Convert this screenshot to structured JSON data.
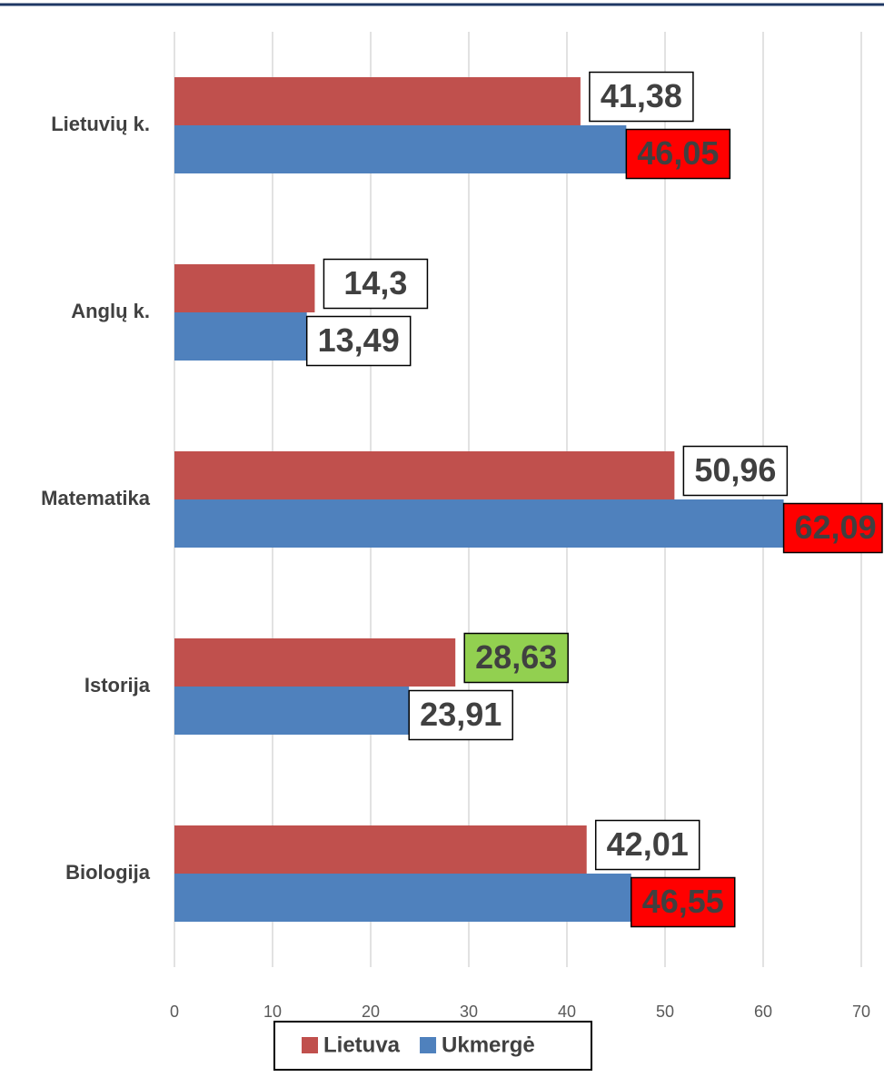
{
  "chart_data": {
    "type": "barh",
    "categories": [
      "Lietuvių  k.",
      "Anglų  k.",
      "Matematika",
      "Istorija",
      "Biologija"
    ],
    "series": [
      {
        "name": "Lietuva",
        "color": "#c0504d",
        "values": [
          41.38,
          14.3,
          50.96,
          28.63,
          42.01
        ],
        "value_labels": [
          "41,38",
          "14,3",
          "50,96",
          "28,63",
          "42,01"
        ],
        "label_fills": [
          "#ffffff",
          "#ffffff",
          "#ffffff",
          "#92d050",
          "#ffffff"
        ]
      },
      {
        "name": "Ukmergė",
        "color": "#4f81bd",
        "values": [
          46.05,
          13.49,
          62.09,
          23.91,
          46.55
        ],
        "value_labels": [
          "46,05",
          "13,49",
          "62,09",
          "23,91",
          "46,55"
        ],
        "label_fills": [
          "#ff0000",
          "#ffffff",
          "#ff0000",
          "#ffffff",
          "#ff0000"
        ]
      }
    ],
    "xlim": [
      0,
      70
    ],
    "xticks": [
      0,
      10,
      20,
      30,
      40,
      50,
      60,
      70
    ],
    "grid": true,
    "legend": "bottom"
  }
}
